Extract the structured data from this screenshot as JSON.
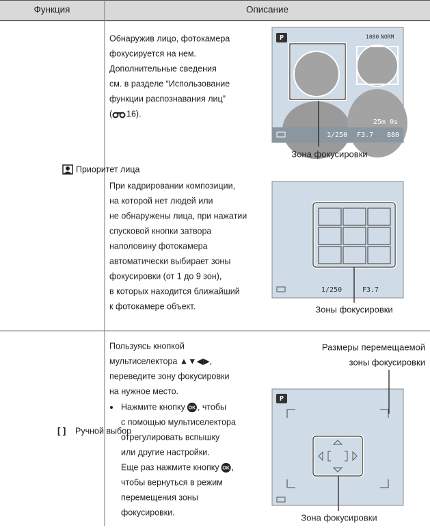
{
  "header": {
    "function": "Функция",
    "description": "Описание"
  },
  "rows": [
    {
      "function": "Приоритет лица",
      "block1": {
        "lines": [
          "Обнаружив лицо, фотокамера",
          "фокусируется на нем.",
          "Дополнительные сведения",
          "см. в разделе “Использование",
          "функции распознавания лиц”"
        ],
        "ref_open": "(",
        "ref_page": "16)."
      },
      "screen1": {
        "mode": "P",
        "movie": "1080",
        "quality": "NORM",
        "remaining": "25m 0s",
        "shutter": "1/250",
        "aperture": "F3.7",
        "shots": "880",
        "caption": "Зона фокусировки"
      },
      "block2": {
        "lines": [
          "При кадрировании композиции,",
          "на которой нет людей или",
          "не обнаружены лица, при нажатии",
          "спусковой кнопки затвора",
          "наполовину фотокамера",
          "автоматически выбирает зоны",
          "фокусировки (от 1 до 9 зон),",
          "в которых находится ближайший",
          "к фотокамере объект."
        ]
      },
      "screen2": {
        "shutter": "1/250",
        "aperture": "F3.7",
        "caption": "Зоны фокусировки"
      }
    },
    {
      "function": "Ручной выбор",
      "block1": {
        "lines": [
          "Пользуясь кнопкой",
          "мультиселектора ▲▼◀▶,",
          "переведите зону фокусировки",
          "на нужное место."
        ]
      },
      "bullet": {
        "lines": [
          "Нажмите кнопку",
          "с помощью мультиселектора",
          "отрегулировать вспышку",
          "или другие настройки.",
          "Еще раз нажмите кнопку"
        ],
        "line1_end": ", чтобы",
        "line5_end": ",",
        "tail": [
          "чтобы вернуться в режим",
          "перемещения зоны",
          "фокусировки."
        ],
        "ok": "OK"
      },
      "screen3": {
        "mode": "P",
        "size_caption": [
          "Размеры перемещаемой",
          "зоны фокусировки"
        ],
        "caption": "Зона фокусировки"
      }
    }
  ]
}
